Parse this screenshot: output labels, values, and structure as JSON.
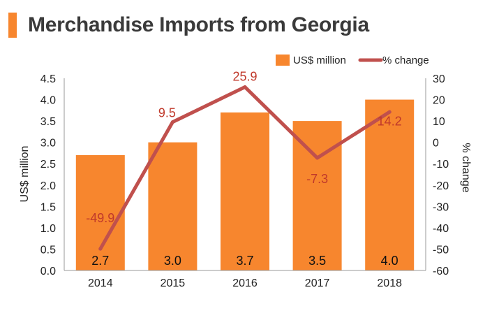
{
  "page": {
    "title": "Merchandise Imports from Georgia"
  },
  "colors": {
    "bar": "#f7862e",
    "line": "#c0504d",
    "pct_label": "#c0392b",
    "title_accent": "#f7862e"
  },
  "chart_data": {
    "type": "bar",
    "categories": [
      "2014",
      "2015",
      "2016",
      "2017",
      "2018"
    ],
    "series": [
      {
        "name": "US$ million",
        "type": "bar",
        "axis": "left",
        "values": [
          2.7,
          3.0,
          3.7,
          3.5,
          4.0
        ],
        "labels": [
          "2.7",
          "3.0",
          "3.7",
          "3.5",
          "4.0"
        ]
      },
      {
        "name": "% change",
        "type": "line",
        "axis": "right",
        "values": [
          -49.9,
          9.5,
          25.9,
          -7.3,
          14.2
        ],
        "labels": [
          "-49.9",
          "9.5",
          "25.9",
          "-7.3",
          "14.2"
        ]
      }
    ],
    "ylabel": "US$ million",
    "y2label": "% change",
    "ylim": [
      0,
      4.5
    ],
    "y2lim": [
      -60,
      30
    ],
    "yticks": [
      "0.0",
      "0.5",
      "1.0",
      "1.5",
      "2.0",
      "2.5",
      "3.0",
      "3.5",
      "4.0",
      "4.5"
    ],
    "y2ticks": [
      "-60",
      "-50",
      "-40",
      "-30",
      "-20",
      "-10",
      "0",
      "10",
      "20",
      "30"
    ],
    "grid": false,
    "legend_position": "top-right"
  }
}
